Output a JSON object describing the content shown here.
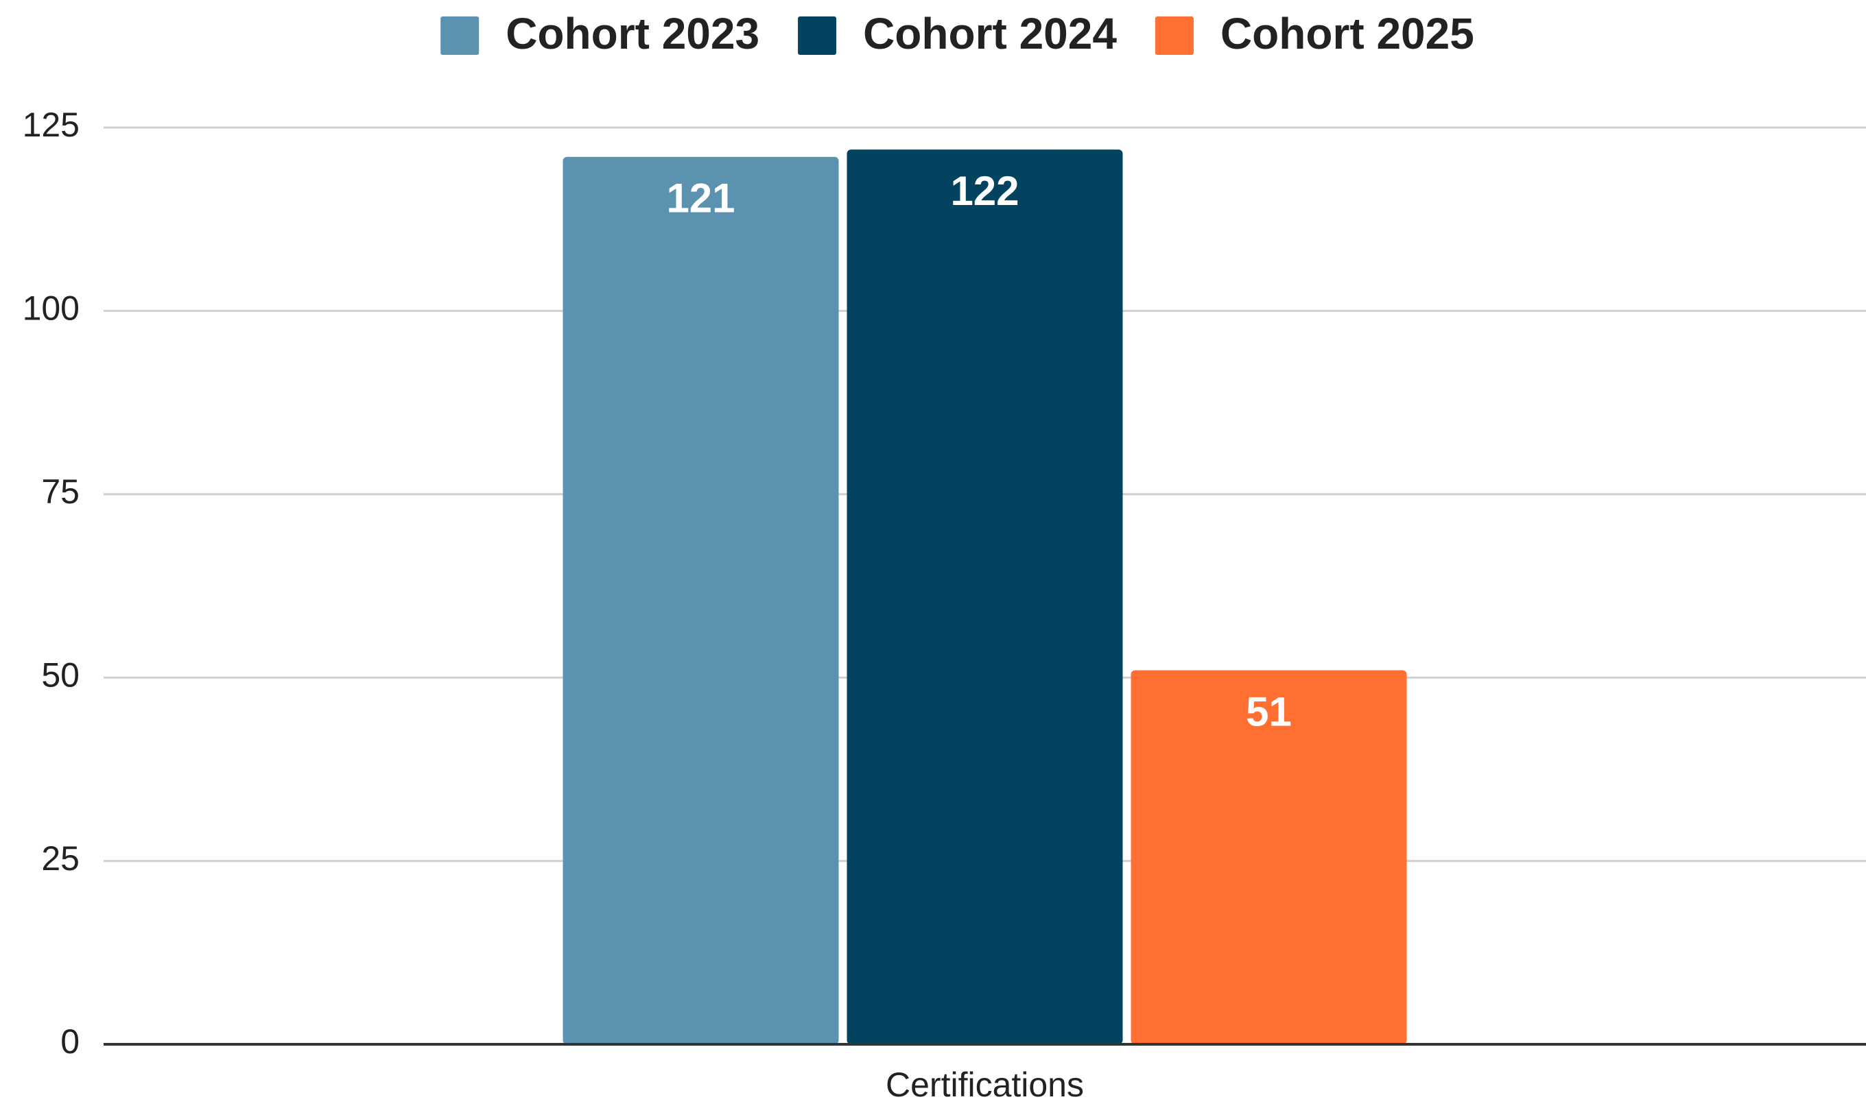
{
  "chart_data": {
    "type": "bar",
    "categories": [
      "Certifications"
    ],
    "series": [
      {
        "name": "Cohort 2023",
        "color": "#5b92b0",
        "values": [
          121
        ]
      },
      {
        "name": "Cohort 2024",
        "color": "#03435f",
        "values": [
          122
        ]
      },
      {
        "name": "Cohort 2025",
        "color": "#ff6f31",
        "values": [
          51
        ]
      }
    ],
    "ylim": [
      0,
      125
    ],
    "yticks": [
      0,
      25,
      50,
      75,
      100,
      125
    ],
    "grid": true,
    "legend": "top"
  }
}
